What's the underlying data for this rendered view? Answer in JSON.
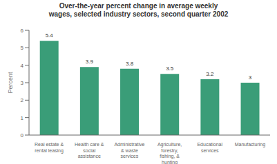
{
  "chart_data": {
    "type": "bar",
    "title": "Over-the-year percent change in average weekly\nwages, selected industry sectors, second quarter 2002",
    "categories": [
      "Real estate &\nrental leasing",
      "Health care &\nsocial\nassistance",
      "Administrative\n& waste\nservices",
      "Agriculture,\nforestry,\nfishing, &\nhunting",
      "Educational\nservices",
      "Manufacturing"
    ],
    "values": [
      5.4,
      3.9,
      3.8,
      3.5,
      3.2,
      3.0
    ],
    "color": "#3a9d78",
    "ylabel": "Percent",
    "ylim": [
      0,
      6
    ],
    "yticks": [
      0,
      1,
      2,
      3,
      4,
      5,
      6
    ],
    "grid": false,
    "data_labels": true
  }
}
